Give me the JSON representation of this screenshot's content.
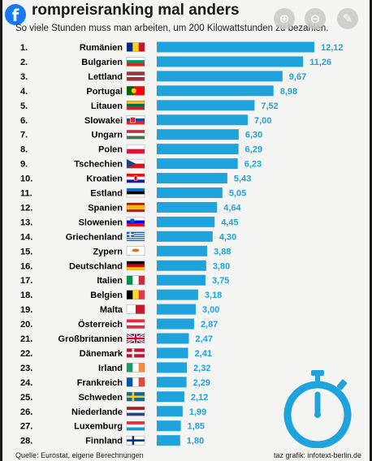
{
  "header": {
    "title_visible": "rompreisranking mal anders",
    "subtitle": "So viele Stunden muss man arbeiten, um 200 Kilowattstunden zu bezahlen."
  },
  "overlay": {
    "facebook_icon": "facebook-icon",
    "zoom_in_icon": "zoom-in-icon",
    "zoom_out_icon": "zoom-out-icon",
    "tag_icon": "tag-icon"
  },
  "footer": {
    "source": "Quelle: Eurostat, eigene Berechnungen",
    "credit": "taz grafik: infotext-berlin.de"
  },
  "colors": {
    "bar": "#1fa3dc",
    "value": "#1fa3dc",
    "stopwatch": "#1fa3dc"
  },
  "chart_data": {
    "type": "bar",
    "orientation": "horizontal",
    "ranks": [
      "1.",
      "2.",
      "3.",
      "4.",
      "5.",
      "6.",
      "7.",
      "8.",
      "9.",
      "10.",
      "11.",
      "12.",
      "13.",
      "14.",
      "15.",
      "16.",
      "17.",
      "18.",
      "19.",
      "20.",
      "21.",
      "22.",
      "23.",
      "24.",
      "25.",
      "26.",
      "27.",
      "28."
    ],
    "categories": [
      "Rumänien",
      "Bulgarien",
      "Lettland",
      "Portugal",
      "Litauen",
      "Slowakei",
      "Ungarn",
      "Polen",
      "Tschechien",
      "Kroatien",
      "Estland",
      "Spanien",
      "Slowenien",
      "Griechenland",
      "Zypern",
      "Deutschland",
      "Italien",
      "Belgien",
      "Malta",
      "Österreich",
      "Großbritannien",
      "Dänemark",
      "Irland",
      "Frankreich",
      "Schweden",
      "Niederlande",
      "Luxemburg",
      "Finnland"
    ],
    "values": [
      12.12,
      11.26,
      9.67,
      8.98,
      7.52,
      7.0,
      6.3,
      6.29,
      6.23,
      5.43,
      5.05,
      4.64,
      4.45,
      4.3,
      3.88,
      3.8,
      3.75,
      3.18,
      3.0,
      2.87,
      2.47,
      2.41,
      2.32,
      2.29,
      2.12,
      1.99,
      1.85,
      1.8
    ],
    "value_labels": [
      "12,12",
      "11,26",
      "9,67",
      "8,98",
      "7,52",
      "7,00",
      "6,30",
      "6,29",
      "6,23",
      "5,43",
      "5,05",
      "4,64",
      "4,45",
      "4,30",
      "3,88",
      "3,80",
      "3,75",
      "3,18",
      "3,00",
      "2,87",
      "2,47",
      "2,41",
      "2,32",
      "2,29",
      "2,12",
      "1,99",
      "1,85",
      "1,80"
    ],
    "flags": [
      "romania",
      "bulgaria",
      "latvia",
      "portugal",
      "lithuania",
      "slovakia",
      "hungary",
      "poland",
      "czechia",
      "croatia",
      "estonia",
      "spain",
      "slovenia",
      "greece",
      "cyprus",
      "germany",
      "italy",
      "belgium",
      "malta",
      "austria",
      "uk",
      "denmark",
      "ireland",
      "france",
      "sweden",
      "netherlands",
      "luxembourg",
      "finland"
    ],
    "title": "",
    "xlabel": "",
    "ylabel": "",
    "grid": false,
    "legend": "none"
  }
}
